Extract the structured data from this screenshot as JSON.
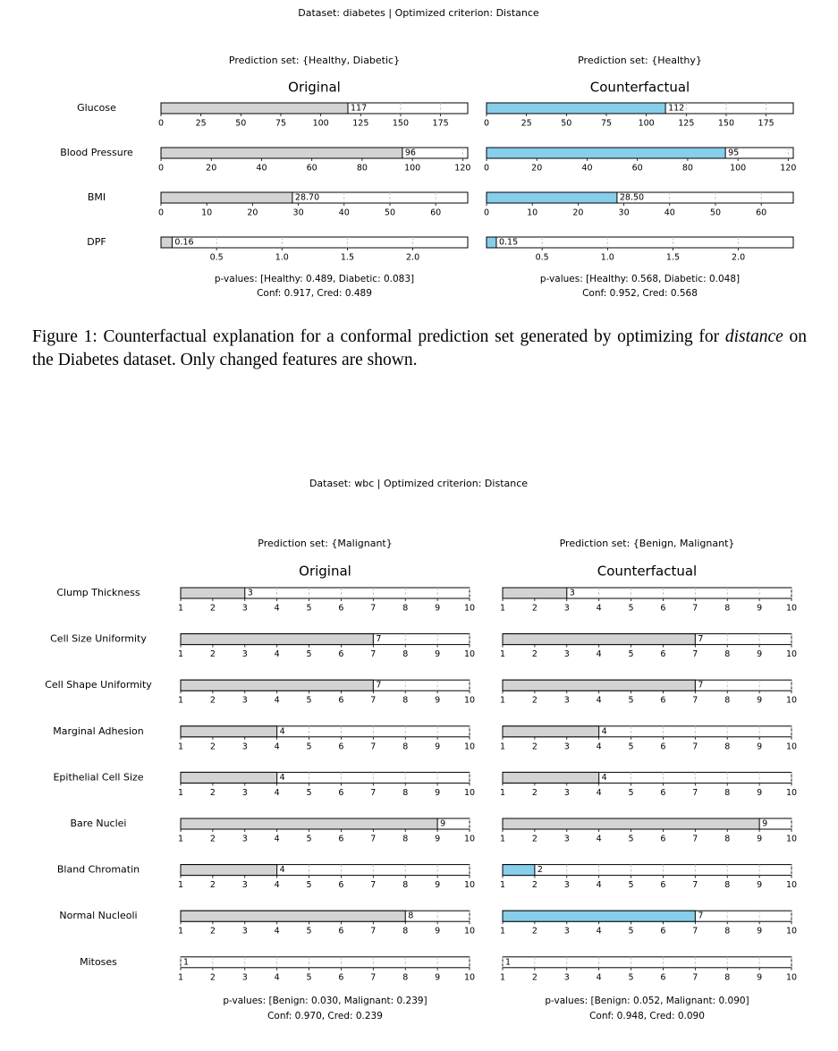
{
  "figures": [
    {
      "title": "Dataset: diabetes | Optimized criterion: Distance",
      "panels": [
        {
          "prediction_set": "Prediction set: {Healthy, Diabetic}",
          "heading": "Original",
          "p_values": "p-values: [Healthy: 0.489, Diabetic: 0.083]",
          "scores": "Conf: 0.917, Cred: 0.489"
        },
        {
          "prediction_set": "Prediction set: {Healthy}",
          "heading": "Counterfactual",
          "p_values": "p-values: [Healthy: 0.568, Diabetic: 0.048]",
          "scores": "Conf: 0.952, Cred: 0.568"
        }
      ],
      "features": [
        {
          "name": "Glucose",
          "values": [
            117,
            112
          ],
          "colors": [
            "#d3d3d3",
            "#87ceeb"
          ],
          "xlim": [
            0,
            192
          ],
          "xticks": [
            0,
            25,
            50,
            75,
            100,
            125,
            150,
            175
          ]
        },
        {
          "name": "Blood Pressure",
          "values": [
            96,
            95
          ],
          "colors": [
            "#d3d3d3",
            "#87ceeb"
          ],
          "xlim": [
            0,
            122
          ],
          "xticks": [
            0,
            20,
            40,
            60,
            80,
            100,
            120
          ]
        },
        {
          "name": "BMI",
          "values": [
            28.7,
            28.5
          ],
          "value_labels": [
            "28.70",
            "28.50"
          ],
          "colors": [
            "#d3d3d3",
            "#87ceeb"
          ],
          "xlim": [
            0,
            67
          ],
          "xticks": [
            0,
            10,
            20,
            30,
            40,
            50,
            60
          ]
        },
        {
          "name": "DPF",
          "values": [
            0.16,
            0.15
          ],
          "colors": [
            "#d3d3d3",
            "#87ceeb"
          ],
          "xlim": [
            0.075,
            2.42
          ],
          "xticks": [
            0.5,
            {
              "value": 1,
              "label": "1.0"
            },
            1.5,
            {
              "value": 2,
              "label": "2.0"
            }
          ]
        }
      ],
      "caption": [
        "Figure 1: Counterfactual explanation for a conformal prediction set generated by optimizing for ",
        "distance",
        " on the Diabetes dataset. Only changed features are shown."
      ]
    },
    {
      "title": "Dataset: wbc | Optimized criterion: Distance",
      "panels": [
        {
          "prediction_set": "Prediction set: {Malignant}",
          "heading": "Original",
          "p_values": "p-values: [Benign: 0.030, Malignant: 0.239]",
          "scores": "Conf: 0.970, Cred: 0.239"
        },
        {
          "prediction_set": "Prediction set: {Benign, Malignant}",
          "heading": "Counterfactual",
          "p_values": "p-values: [Benign: 0.052, Malignant: 0.090]",
          "scores": "Conf: 0.948, Cred: 0.090"
        }
      ],
      "xlim": [
        1,
        10
      ],
      "xticks": [
        1,
        2,
        3,
        4,
        5,
        6,
        7,
        8,
        9,
        10
      ],
      "features": [
        {
          "name": "Clump Thickness",
          "values": [
            3,
            3
          ],
          "colors": [
            "#d3d3d3",
            "#d3d3d3"
          ]
        },
        {
          "name": "Cell Size Uniformity",
          "values": [
            7,
            7
          ],
          "colors": [
            "#d3d3d3",
            "#d3d3d3"
          ]
        },
        {
          "name": "Cell Shape Uniformity",
          "values": [
            7,
            7
          ],
          "colors": [
            "#d3d3d3",
            "#d3d3d3"
          ]
        },
        {
          "name": "Marginal Adhesion",
          "values": [
            4,
            4
          ],
          "colors": [
            "#d3d3d3",
            "#d3d3d3"
          ]
        },
        {
          "name": "Epithelial Cell Size",
          "values": [
            4,
            4
          ],
          "colors": [
            "#d3d3d3",
            "#d3d3d3"
          ]
        },
        {
          "name": "Bare Nuclei",
          "values": [
            9,
            9
          ],
          "colors": [
            "#d3d3d3",
            "#d3d3d3"
          ]
        },
        {
          "name": "Bland Chromatin",
          "values": [
            4,
            2
          ],
          "colors": [
            "#d3d3d3",
            "#87ceeb"
          ]
        },
        {
          "name": "Normal Nucleoli",
          "values": [
            8,
            7
          ],
          "colors": [
            "#d3d3d3",
            "#87ceeb"
          ]
        },
        {
          "name": "Mitoses",
          "values": [
            1,
            1
          ],
          "colors": [
            "#d3d3d3",
            "#d3d3d3"
          ]
        }
      ]
    }
  ]
}
